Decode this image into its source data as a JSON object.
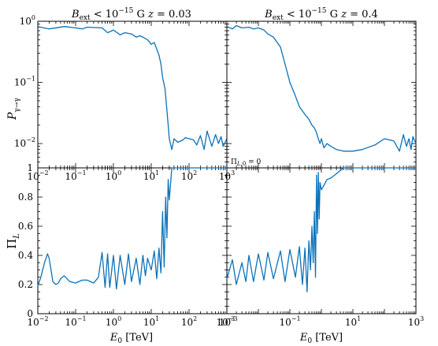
{
  "chart_data": [
    {
      "panel": "top-left",
      "type": "line",
      "title": "B_ext < 10^-15 G     z = 0.03",
      "xlabel": "",
      "ylabel": "P_γ→γ",
      "xscale": "log",
      "yscale": "log",
      "xlim": [
        0.01,
        1000
      ],
      "ylim": [
        0.004,
        1
      ],
      "grid": false,
      "x_ticks": [
        "10^-2",
        "10^-1",
        "10^0",
        "10^1",
        "10^2",
        "10^3"
      ],
      "y_ticks": [
        "10^-2",
        "10^-1",
        "10^0"
      ],
      "series": [
        {
          "x": [
            0.01,
            0.02,
            0.05,
            0.1,
            0.15,
            0.2,
            0.3,
            0.5,
            0.7,
            1,
            1.5,
            2,
            3,
            4,
            5,
            6,
            7,
            8,
            10,
            12,
            14,
            16,
            18,
            20,
            23,
            26,
            28,
            30,
            35,
            40,
            50,
            60,
            70,
            80,
            100,
            130,
            160,
            200,
            250,
            300,
            400,
            500,
            600,
            700,
            800,
            1000
          ],
          "y": [
            0.82,
            0.75,
            0.82,
            0.78,
            0.75,
            0.8,
            0.79,
            0.78,
            0.65,
            0.72,
            0.6,
            0.65,
            0.62,
            0.55,
            0.58,
            0.55,
            0.52,
            0.5,
            0.42,
            0.45,
            0.35,
            0.28,
            0.2,
            0.12,
            0.08,
            0.035,
            0.02,
            0.012,
            0.008,
            0.012,
            0.0105,
            0.011,
            0.0115,
            0.0125,
            0.012,
            0.0115,
            0.0095,
            0.0135,
            0.008,
            0.016,
            0.009,
            0.014,
            0.01,
            0.013,
            0.009,
            0.012
          ]
        }
      ]
    },
    {
      "panel": "top-right",
      "type": "line",
      "title": "B_ext < 10^-15 G     z = 0.4",
      "xlabel": "",
      "ylabel": "",
      "xscale": "log",
      "yscale": "log",
      "xlim": [
        0.001,
        1000
      ],
      "ylim": [
        0.004,
        1
      ],
      "grid": false,
      "x_ticks": [],
      "y_ticks": [],
      "series": [
        {
          "x": [
            0.001,
            0.0015,
            0.002,
            0.003,
            0.005,
            0.007,
            0.01,
            0.015,
            0.02,
            0.03,
            0.05,
            0.07,
            0.1,
            0.15,
            0.2,
            0.3,
            0.4,
            0.5,
            0.6,
            0.7,
            0.8,
            0.9,
            1,
            1.2,
            1.5,
            2,
            3,
            5,
            10,
            20,
            50,
            100,
            200,
            300,
            400,
            500,
            600,
            700,
            800,
            1000
          ],
          "y": [
            0.82,
            0.75,
            0.85,
            0.78,
            0.8,
            0.75,
            0.78,
            0.72,
            0.62,
            0.55,
            0.38,
            0.2,
            0.1,
            0.06,
            0.04,
            0.03,
            0.025,
            0.02,
            0.018,
            0.015,
            0.012,
            0.01,
            0.012,
            0.0085,
            0.01,
            0.009,
            0.008,
            0.0075,
            0.0075,
            0.008,
            0.0095,
            0.012,
            0.011,
            0.0075,
            0.014,
            0.009,
            0.012,
            0.008,
            0.013,
            0.01
          ]
        }
      ]
    },
    {
      "panel": "bottom-left",
      "type": "line",
      "title": "",
      "xlabel": "E_0 [TeV]",
      "ylabel": "Π_L",
      "xscale": "log",
      "yscale": "linear",
      "xlim": [
        0.01,
        1000
      ],
      "ylim": [
        0,
        1
      ],
      "grid": false,
      "x_ticks": [
        "10^-2",
        "10^-1",
        "10^0",
        "10^1",
        "10^2",
        "10^3"
      ],
      "y_ticks": [
        "0",
        "0.2",
        "0.4",
        "0.6",
        "0.8",
        "1"
      ],
      "series": [
        {
          "x": [
            0.01,
            0.012,
            0.015,
            0.018,
            0.02,
            0.025,
            0.03,
            0.035,
            0.04,
            0.05,
            0.07,
            0.1,
            0.15,
            0.2,
            0.3,
            0.4,
            0.5,
            0.6,
            0.7,
            0.8,
            1,
            1.2,
            1.5,
            2,
            2.5,
            3,
            4,
            5,
            6,
            7,
            8,
            10,
            12,
            14,
            16,
            18,
            20,
            22,
            24,
            26,
            28,
            30,
            35,
            40,
            50,
            70,
            100,
            200,
            500,
            1000
          ],
          "y": [
            0.19,
            0.25,
            0.35,
            0.41,
            0.38,
            0.22,
            0.2,
            0.21,
            0.24,
            0.26,
            0.22,
            0.21,
            0.23,
            0.23,
            0.21,
            0.25,
            0.42,
            0.18,
            0.41,
            0.18,
            0.4,
            0.17,
            0.4,
            0.2,
            0.41,
            0.22,
            0.38,
            0.2,
            0.4,
            0.26,
            0.38,
            0.3,
            0.43,
            0.24,
            0.45,
            0.28,
            0.7,
            0.32,
            0.8,
            0.52,
            0.92,
            0.78,
            1,
            1,
            1,
            1,
            1,
            1,
            1,
            1
          ]
        }
      ]
    },
    {
      "panel": "bottom-right",
      "type": "line",
      "title": "",
      "xlabel": "E_0 [TeV]",
      "ylabel": "",
      "xscale": "log",
      "yscale": "linear",
      "xlim": [
        0.001,
        1000
      ],
      "ylim": [
        0,
        1
      ],
      "grid": false,
      "annotation": "Π_L,0 = 0",
      "x_ticks": [
        "10^-3",
        "10^-1",
        "10^1",
        "10^3"
      ],
      "y_ticks": [],
      "series": [
        {
          "x": [
            0.001,
            0.0015,
            0.002,
            0.003,
            0.004,
            0.005,
            0.007,
            0.01,
            0.015,
            0.02,
            0.03,
            0.05,
            0.07,
            0.1,
            0.15,
            0.2,
            0.25,
            0.3,
            0.35,
            0.4,
            0.45,
            0.5,
            0.55,
            0.6,
            0.65,
            0.7,
            0.75,
            0.8,
            0.85,
            0.9,
            1,
            1.2,
            1.5,
            2,
            3,
            5,
            10,
            30,
            100,
            1000
          ],
          "y": [
            0.24,
            0.37,
            0.2,
            0.35,
            0.22,
            0.4,
            0.22,
            0.41,
            0.23,
            0.42,
            0.24,
            0.43,
            0.22,
            0.44,
            0.25,
            0.46,
            0.2,
            0.45,
            0.15,
            0.5,
            0.3,
            0.6,
            0.35,
            0.7,
            0.25,
            0.95,
            0.55,
            0.97,
            0.65,
            0.9,
            0.85,
            0.88,
            0.92,
            0.93,
            0.96,
            1,
            1,
            1,
            1,
            1
          ]
        }
      ]
    }
  ]
}
